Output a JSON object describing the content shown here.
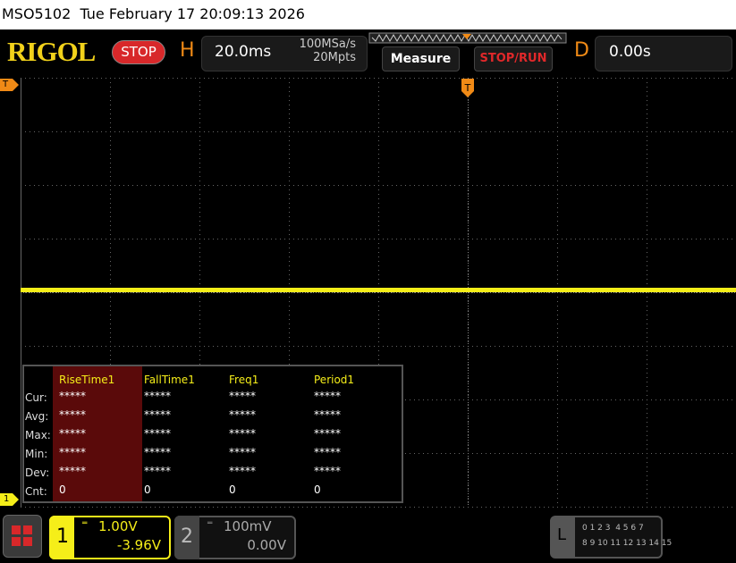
{
  "status_bar": {
    "text": "MSO5102  Tue February 17 20:09:13 2026"
  },
  "toolbar": {
    "logo": "RIGOL",
    "run_state": "STOP",
    "horizontal": {
      "label": "H",
      "timebase": "20.0ms",
      "sample_rate": "100MSa/s",
      "memory_depth": "20Mpts"
    },
    "measure_button": "Measure",
    "stop_run_button": "STOP/RUN",
    "delay": {
      "label": "D",
      "value": "0.00s"
    }
  },
  "markers": {
    "trigger_level": "T",
    "trigger_position": "T",
    "channel1": "1"
  },
  "measurements": {
    "columns": [
      "RiseTime1",
      "FallTime1",
      "Freq1",
      "Period1"
    ],
    "rows": [
      {
        "label": "Cur:",
        "values": [
          "*****",
          "*****",
          "*****",
          "*****"
        ]
      },
      {
        "label": "Avg:",
        "values": [
          "*****",
          "*****",
          "*****",
          "*****"
        ]
      },
      {
        "label": "Max:",
        "values": [
          "*****",
          "*****",
          "*****",
          "*****"
        ]
      },
      {
        "label": "Min:",
        "values": [
          "*****",
          "*****",
          "*****",
          "*****"
        ]
      },
      {
        "label": "Dev:",
        "values": [
          "*****",
          "*****",
          "*****",
          "*****"
        ]
      },
      {
        "label": "Cnt:",
        "values": [
          "0",
          "0",
          "0",
          "0"
        ]
      }
    ]
  },
  "channels": [
    {
      "number": "1",
      "scale": "1.00V",
      "offset": "-3.96V"
    },
    {
      "number": "2",
      "scale": "100mV",
      "offset": "0.00V"
    }
  ],
  "logic": {
    "label": "L",
    "channels_low": "0 1 2 3  4 5 6 7",
    "channels_high": "8 9 10 11 12 13 14 15"
  }
}
